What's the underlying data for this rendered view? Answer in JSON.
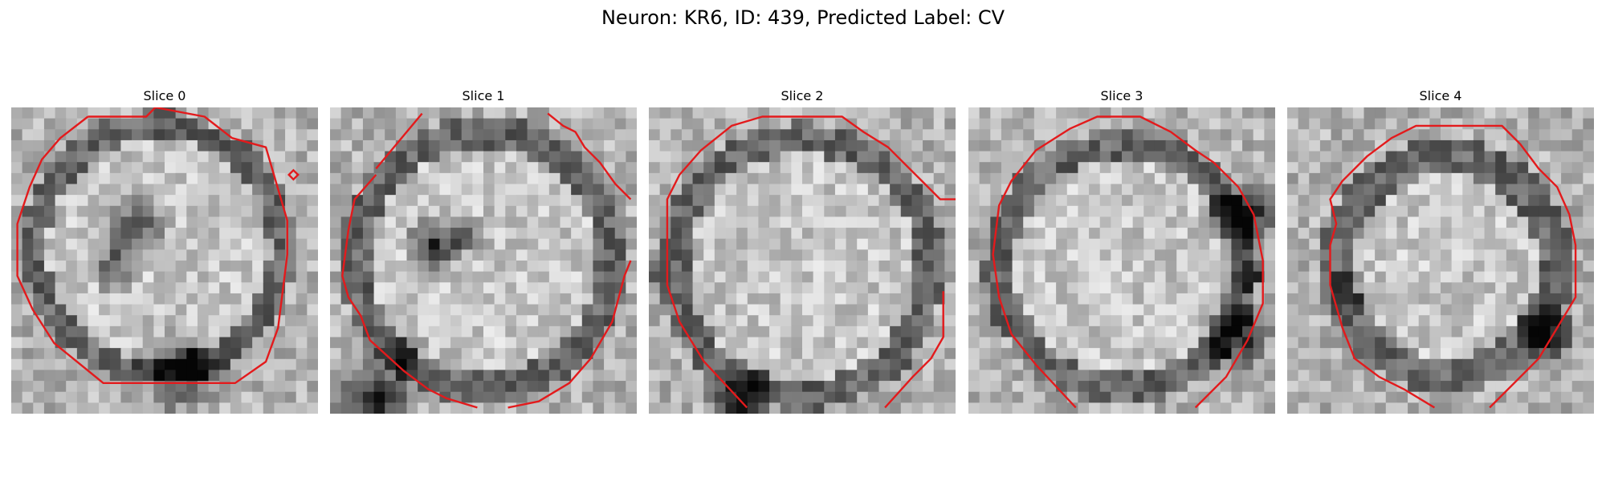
{
  "figure": {
    "title": "Neuron: KR6, ID: 439, Predicted Label: CV"
  },
  "colors": {
    "contour": "#e31a1c",
    "colormap": "gray"
  },
  "panels": [
    {
      "title": "Slice 0",
      "description": "grayscale cell cross-section with dark elongated nucleolus-like region in upper-left interior; red contour traced around cell boundary with a small diamond marker near the right edge"
    },
    {
      "title": "Slice 1",
      "description": "grayscale cell cross-section with dark blotch left of center; red contour traced around cell boundary, open at top and bottom"
    },
    {
      "title": "Slice 2",
      "description": "grayscale round cell with bright interior; red contour traced around cell boundary, open at bottom-right"
    },
    {
      "title": "Slice 3",
      "description": "grayscale round cell with dark band along the right edge; red contour traced around cell boundary, open at bottom"
    },
    {
      "title": "Slice 4",
      "description": "grayscale round cell, smaller, with dark ring; red contour traced around cell boundary, open at bottom"
    }
  ]
}
